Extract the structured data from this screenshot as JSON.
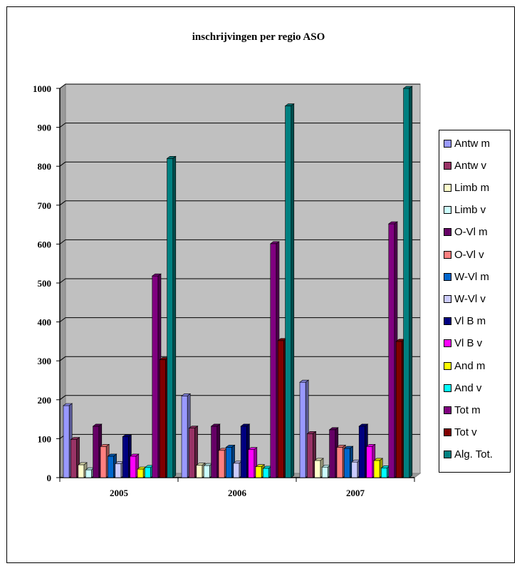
{
  "chart_data": {
    "type": "bar",
    "title": "inschrijvingen per regio ASO",
    "categories": [
      "2005",
      "2006",
      "2007"
    ],
    "ylim": [
      0,
      1000
    ],
    "yticks": [
      "0",
      "100",
      "200",
      "300",
      "400",
      "500",
      "600",
      "700",
      "800",
      "900",
      "1000"
    ],
    "grid": true,
    "legend_position": "right",
    "series": [
      {
        "name": "Antw m",
        "color": "#9999ff",
        "values": [
          185,
          210,
          245
        ]
      },
      {
        "name": "Antw v",
        "color": "#993366",
        "values": [
          98,
          127,
          113
        ]
      },
      {
        "name": "Limb m",
        "color": "#ffffcc",
        "values": [
          33,
          32,
          44
        ]
      },
      {
        "name": "Limb v",
        "color": "#ccffff",
        "values": [
          20,
          31,
          27
        ]
      },
      {
        "name": "O-Vl m",
        "color": "#660066",
        "values": [
          132,
          132,
          123
        ]
      },
      {
        "name": "O-Vl v",
        "color": "#ff8080",
        "values": [
          80,
          70,
          78
        ]
      },
      {
        "name": "W-Vl m",
        "color": "#0066cc",
        "values": [
          55,
          78,
          75
        ]
      },
      {
        "name": "W-Vl v",
        "color": "#ccccff",
        "values": [
          36,
          37,
          40
        ]
      },
      {
        "name": "Vl B m",
        "color": "#000080",
        "values": [
          105,
          132,
          132
        ]
      },
      {
        "name": "Vl B v",
        "color": "#ff00ff",
        "values": [
          55,
          72,
          80
        ]
      },
      {
        "name": "And m",
        "color": "#ffff00",
        "values": [
          22,
          28,
          44
        ]
      },
      {
        "name": "And v",
        "color": "#00ffff",
        "values": [
          26,
          24,
          25
        ]
      },
      {
        "name": "Tot m",
        "color": "#800080",
        "values": [
          518,
          601,
          652
        ]
      },
      {
        "name": "Tot v",
        "color": "#800000",
        "values": [
          303,
          352,
          350
        ]
      },
      {
        "name": "Alg. Tot.",
        "color": "#008080",
        "values": [
          820,
          955,
          1000
        ]
      }
    ]
  }
}
